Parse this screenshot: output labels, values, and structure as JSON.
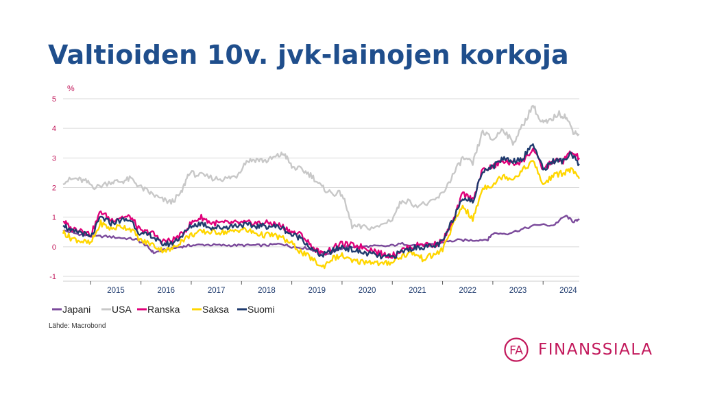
{
  "title": "Valtioiden 10v. jvk-lainojen korkoja",
  "source": "Lähde: Macrobond",
  "logo": {
    "monogram": "FA",
    "name": "FINANSSIALA"
  },
  "colors": {
    "title": "#1f4e8c",
    "brand": "#c2185b",
    "axis_text": "#1f3b6e",
    "unit_text": "#c2185b",
    "grid": "#d9d9d9"
  },
  "chart_data": {
    "type": "line",
    "ylabel": "%",
    "ylim": [
      -1,
      5
    ],
    "yticks": [
      "5",
      "4",
      "3",
      "2",
      "1",
      "0",
      "-1"
    ],
    "xlim": [
      2014.45,
      2024.72
    ],
    "x_tick_labels": [
      "2015",
      "2016",
      "2017",
      "2018",
      "2019",
      "2020",
      "2021",
      "2022",
      "2023",
      "2024"
    ],
    "grid": true,
    "legend_position": "bottom-left",
    "series": [
      {
        "name": "Japani",
        "color": "#7b4a9b",
        "x": [
          2014.45,
          2014.7,
          2015.0,
          2015.3,
          2015.6,
          2015.9,
          2016.1,
          2016.25,
          2016.5,
          2016.8,
          2017.0,
          2017.3,
          2017.6,
          2017.9,
          2018.2,
          2018.5,
          2018.8,
          2019.0,
          2019.3,
          2019.5,
          2019.7,
          2019.9,
          2020.1,
          2020.3,
          2020.6,
          2020.9,
          2021.2,
          2021.5,
          2021.8,
          2022.0,
          2022.3,
          2022.6,
          2022.9,
          2023.0,
          2023.3,
          2023.6,
          2023.9,
          2024.2,
          2024.45,
          2024.6,
          2024.72
        ],
        "y": [
          0.55,
          0.45,
          0.35,
          0.35,
          0.3,
          0.25,
          0.05,
          -0.2,
          -0.1,
          0.0,
          0.05,
          0.07,
          0.05,
          0.05,
          0.05,
          0.05,
          0.1,
          0.0,
          -0.05,
          -0.15,
          -0.25,
          -0.1,
          0.0,
          0.0,
          0.02,
          0.02,
          0.1,
          0.05,
          0.07,
          0.15,
          0.22,
          0.22,
          0.25,
          0.45,
          0.45,
          0.6,
          0.75,
          0.72,
          1.05,
          0.85,
          0.9
        ]
      },
      {
        "name": "USA",
        "color": "#c8c8c8",
        "x": [
          2014.45,
          2014.7,
          2014.9,
          2015.1,
          2015.4,
          2015.6,
          2015.8,
          2016.0,
          2016.2,
          2016.4,
          2016.6,
          2016.8,
          2016.95,
          2017.2,
          2017.5,
          2017.7,
          2017.9,
          2018.1,
          2018.3,
          2018.5,
          2018.7,
          2018.85,
          2019.0,
          2019.2,
          2019.4,
          2019.6,
          2019.8,
          2020.0,
          2020.2,
          2020.4,
          2020.7,
          2021.0,
          2021.2,
          2021.5,
          2021.8,
          2022.0,
          2022.2,
          2022.4,
          2022.6,
          2022.8,
          2023.0,
          2023.2,
          2023.4,
          2023.6,
          2023.8,
          2023.95,
          2024.1,
          2024.3,
          2024.45,
          2024.6,
          2024.72
        ],
        "y": [
          2.2,
          2.3,
          2.2,
          2.0,
          2.2,
          2.2,
          2.3,
          2.0,
          1.8,
          1.6,
          1.5,
          1.8,
          2.5,
          2.4,
          2.3,
          2.3,
          2.4,
          2.9,
          2.95,
          2.9,
          3.05,
          3.15,
          2.7,
          2.6,
          2.4,
          2.0,
          1.8,
          1.8,
          0.7,
          0.65,
          0.65,
          0.95,
          1.6,
          1.4,
          1.5,
          1.8,
          2.4,
          3.0,
          2.8,
          3.9,
          3.6,
          4.0,
          3.5,
          4.1,
          4.8,
          4.2,
          4.2,
          4.5,
          4.4,
          3.9,
          3.8
        ]
      },
      {
        "name": "Ranska",
        "color": "#e0007a",
        "x": [
          2014.45,
          2014.6,
          2014.8,
          2015.0,
          2015.2,
          2015.4,
          2015.6,
          2015.8,
          2016.0,
          2016.2,
          2016.4,
          2016.6,
          2016.8,
          2017.0,
          2017.2,
          2017.4,
          2017.6,
          2017.8,
          2018.0,
          2018.2,
          2018.4,
          2018.6,
          2018.8,
          2019.0,
          2019.2,
          2019.4,
          2019.6,
          2019.8,
          2020.0,
          2020.2,
          2020.4,
          2020.6,
          2020.8,
          2021.0,
          2021.2,
          2021.4,
          2021.6,
          2021.8,
          2022.0,
          2022.2,
          2022.4,
          2022.6,
          2022.8,
          2023.0,
          2023.2,
          2023.4,
          2023.6,
          2023.8,
          2024.0,
          2024.2,
          2024.4,
          2024.55,
          2024.72
        ],
        "y": [
          0.9,
          0.6,
          0.6,
          0.4,
          1.2,
          0.9,
          1.0,
          1.0,
          0.5,
          0.5,
          0.2,
          0.2,
          0.4,
          0.8,
          1.0,
          0.8,
          0.8,
          0.8,
          0.8,
          0.8,
          0.8,
          0.8,
          0.7,
          0.5,
          0.4,
          0.0,
          -0.25,
          -0.05,
          0.1,
          0.05,
          0.0,
          -0.1,
          -0.25,
          -0.3,
          -0.1,
          0.0,
          0.1,
          0.05,
          0.2,
          0.8,
          1.8,
          1.6,
          2.6,
          2.7,
          2.9,
          2.8,
          2.9,
          3.3,
          2.6,
          2.9,
          2.9,
          3.2,
          3.0
        ]
      },
      {
        "name": "Saksa",
        "color": "#ffd600",
        "x": [
          2014.45,
          2014.6,
          2014.8,
          2015.0,
          2015.2,
          2015.4,
          2015.6,
          2015.8,
          2016.0,
          2016.2,
          2016.4,
          2016.6,
          2016.8,
          2017.0,
          2017.2,
          2017.4,
          2017.6,
          2017.8,
          2018.0,
          2018.2,
          2018.4,
          2018.6,
          2018.8,
          2019.0,
          2019.2,
          2019.4,
          2019.6,
          2019.8,
          2020.0,
          2020.2,
          2020.4,
          2020.6,
          2020.8,
          2021.0,
          2021.2,
          2021.4,
          2021.6,
          2021.8,
          2022.0,
          2022.2,
          2022.4,
          2022.6,
          2022.8,
          2023.0,
          2023.2,
          2023.4,
          2023.6,
          2023.8,
          2024.0,
          2024.2,
          2024.4,
          2024.55,
          2024.72
        ],
        "y": [
          0.5,
          0.3,
          0.2,
          0.1,
          0.8,
          0.6,
          0.7,
          0.6,
          0.2,
          0.1,
          -0.1,
          -0.1,
          0.2,
          0.4,
          0.5,
          0.5,
          0.5,
          0.5,
          0.6,
          0.5,
          0.4,
          0.4,
          0.3,
          0.1,
          -0.2,
          -0.4,
          -0.7,
          -0.4,
          -0.3,
          -0.5,
          -0.5,
          -0.5,
          -0.6,
          -0.5,
          -0.3,
          -0.2,
          -0.4,
          -0.3,
          -0.1,
          0.7,
          1.4,
          0.9,
          2.0,
          2.1,
          2.4,
          2.3,
          2.6,
          2.9,
          2.1,
          2.4,
          2.5,
          2.6,
          2.3
        ]
      },
      {
        "name": "Suomi",
        "color": "#1f3b6e",
        "x": [
          2014.45,
          2014.6,
          2014.8,
          2015.0,
          2015.2,
          2015.4,
          2015.6,
          2015.8,
          2016.0,
          2016.2,
          2016.4,
          2016.6,
          2016.8,
          2017.0,
          2017.2,
          2017.4,
          2017.6,
          2017.8,
          2018.0,
          2018.2,
          2018.4,
          2018.6,
          2018.8,
          2019.0,
          2019.2,
          2019.4,
          2019.6,
          2019.8,
          2020.0,
          2020.2,
          2020.4,
          2020.6,
          2020.8,
          2021.0,
          2021.2,
          2021.4,
          2021.6,
          2021.8,
          2022.0,
          2022.2,
          2022.4,
          2022.6,
          2022.8,
          2023.0,
          2023.2,
          2023.4,
          2023.6,
          2023.8,
          2024.0,
          2024.2,
          2024.4,
          2024.55,
          2024.72
        ],
        "y": [
          0.8,
          0.5,
          0.5,
          0.3,
          1.0,
          0.8,
          0.9,
          0.9,
          0.4,
          0.4,
          0.1,
          0.1,
          0.35,
          0.7,
          0.8,
          0.65,
          0.65,
          0.7,
          0.75,
          0.7,
          0.7,
          0.7,
          0.65,
          0.4,
          0.3,
          -0.1,
          -0.3,
          -0.15,
          0.0,
          -0.1,
          -0.2,
          -0.25,
          -0.35,
          -0.35,
          -0.15,
          -0.05,
          0.0,
          0.0,
          0.15,
          0.9,
          1.7,
          1.5,
          2.6,
          2.7,
          3.0,
          2.9,
          3.0,
          3.5,
          2.6,
          2.9,
          2.9,
          3.1,
          2.8
        ]
      }
    ]
  }
}
